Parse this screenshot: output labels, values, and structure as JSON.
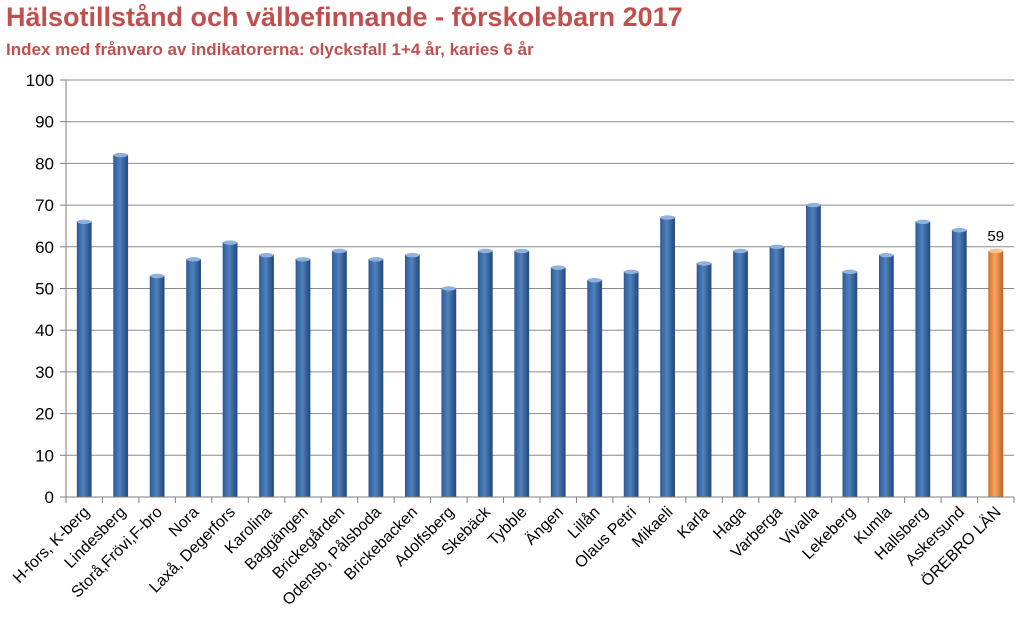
{
  "chart_data": {
    "type": "bar",
    "title": "Hälsotillstånd och välbefinnande - förskolebarn 2017",
    "subtitle": "Index med frånvaro av indikatorerna: olycksfall 1+4 år, karies 6 år",
    "categories": [
      "H-fors, K-berg",
      "Lindesberg",
      "Storå,Frövi,F-bro",
      "Nora",
      "Laxå, Degerfors",
      "Karolina",
      "Baggängen",
      "Brickegården",
      "Odensb, Pålsboda",
      "Brickebacken",
      "Adolfsberg",
      "Skebäck",
      "Tybble",
      "Ängen",
      "Lillån",
      "Olaus Petri",
      "Mikaeli",
      "Karla",
      "Haga",
      "Varberga",
      "Vivalla",
      "Lekeberg",
      "Kumla",
      "Hallsberg",
      "Askersund",
      "ÖREBRO LÄN"
    ],
    "values": [
      66,
      82,
      53,
      57,
      61,
      58,
      57,
      59,
      57,
      58,
      50,
      59,
      59,
      55,
      52,
      54,
      67,
      56,
      59,
      60,
      70,
      54,
      58,
      66,
      64,
      59
    ],
    "highlight_index": 25,
    "data_labels": [
      {
        "index": 25,
        "text": "59"
      }
    ],
    "ylim": [
      0,
      100
    ],
    "yticks": [
      0,
      10,
      20,
      30,
      40,
      50,
      60,
      70,
      80,
      90,
      100
    ],
    "grid": true,
    "legend": "none",
    "colors": {
      "bar": "#4f81bd",
      "bar_dark": "#2e5588",
      "highlight": "#f79646",
      "highlight_dark": "#c0652a",
      "title": "#c0504d",
      "grid": "#8c8c8c"
    }
  }
}
